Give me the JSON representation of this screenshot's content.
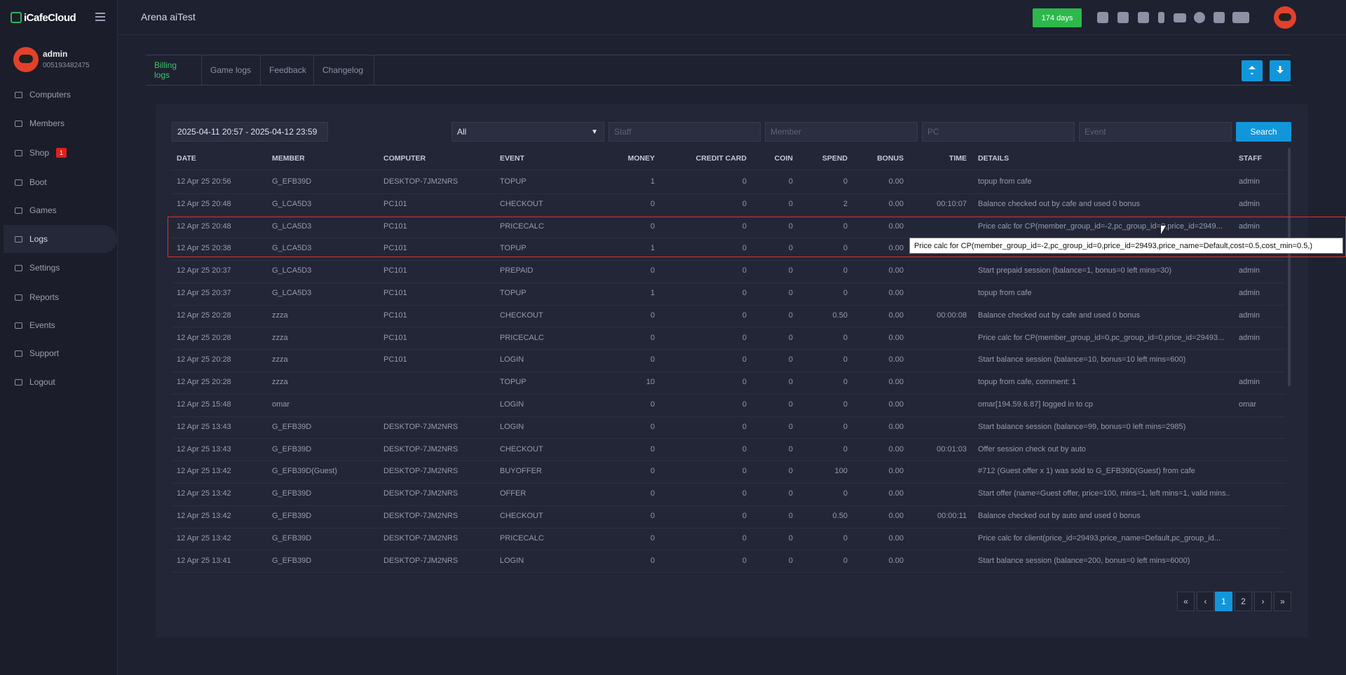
{
  "header": {
    "logo": "iCafeCloud",
    "cafe_name": "Arena aiTest",
    "days_badge": "174 days"
  },
  "user": {
    "name": "admin",
    "id": "005193482475"
  },
  "nav": [
    {
      "label": "Computers"
    },
    {
      "label": "Members"
    },
    {
      "label": "Shop",
      "badge": "1"
    },
    {
      "label": "Boot"
    },
    {
      "label": "Games"
    },
    {
      "label": "Logs",
      "active": true
    },
    {
      "label": "Settings"
    },
    {
      "label": "Reports"
    },
    {
      "label": "Events"
    },
    {
      "label": "Support"
    },
    {
      "label": "Logout"
    }
  ],
  "tabs": [
    {
      "label": "Billing logs",
      "active": true
    },
    {
      "label": "Game logs"
    },
    {
      "label": "Feedback"
    },
    {
      "label": "Changelog"
    }
  ],
  "filters": {
    "date_range": "2025-04-11 20:57 - 2025-04-12 23:59",
    "select": "All",
    "staff_placeholder": "Staff",
    "member_placeholder": "Member",
    "pc_placeholder": "PC",
    "event_placeholder": "Event",
    "search_button": "Search"
  },
  "table": {
    "columns": [
      "DATE",
      "MEMBER",
      "COMPUTER",
      "EVENT",
      "MONEY",
      "CREDIT CARD",
      "COIN",
      "SPEND",
      "BONUS",
      "TIME",
      "DETAILS",
      "STAFF"
    ],
    "rows": [
      [
        "12 Apr 25 20:56",
        "G_EFB39D",
        "DESKTOP-7JM2NRS",
        "TOPUP",
        "1",
        "0",
        "0",
        "0",
        "0.00",
        null,
        "topup from cafe",
        "admin"
      ],
      [
        "12 Apr 25 20:48",
        "G_LCA5D3",
        "PC101",
        "CHECKOUT",
        "0",
        "0",
        "0",
        "2",
        "0.00",
        "00:10:07",
        "Balance checked out by cafe and used 0 bonus",
        "admin"
      ],
      [
        "12 Apr 25 20:48",
        "G_LCA5D3",
        "PC101",
        "PRICECALC",
        "0",
        "0",
        "0",
        "0",
        "0.00",
        null,
        "Price calc for CP(member_group_id=-2,pc_group_id=0,price_id=2949...",
        "admin"
      ],
      [
        "12 Apr 25 20:38",
        "G_LCA5D3",
        "PC101",
        "TOPUP",
        "1",
        "0",
        "0",
        "0",
        "0.00",
        null,
        null,
        null
      ],
      [
        "12 Apr 25 20:37",
        "G_LCA5D3",
        "PC101",
        "PREPAID",
        "0",
        "0",
        "0",
        "0",
        "0.00",
        null,
        "Start prepaid session (balance=1, bonus=0 left mins=30)",
        "admin"
      ],
      [
        "12 Apr 25 20:37",
        "G_LCA5D3",
        "PC101",
        "TOPUP",
        "1",
        "0",
        "0",
        "0",
        "0.00",
        null,
        "topup from cafe",
        "admin"
      ],
      [
        "12 Apr 25 20:28",
        "zzza",
        "PC101",
        "CHECKOUT",
        "0",
        "0",
        "0",
        "0.50",
        "0.00",
        "00:00:08",
        "Balance checked out by cafe and used 0 bonus",
        "admin"
      ],
      [
        "12 Apr 25 20:28",
        "zzza",
        "PC101",
        "PRICECALC",
        "0",
        "0",
        "0",
        "0",
        "0.00",
        null,
        "Price calc for CP(member_group_id=0,pc_group_id=0,price_id=29493...",
        "admin"
      ],
      [
        "12 Apr 25 20:28",
        "zzza",
        "PC101",
        "LOGIN",
        "0",
        "0",
        "0",
        "0",
        "0.00",
        null,
        "Start balance session (balance=10, bonus=10 left mins=600)",
        null
      ],
      [
        "12 Apr 25 20:28",
        "zzza",
        null,
        "TOPUP",
        "10",
        "0",
        "0",
        "0",
        "0.00",
        null,
        "topup from cafe, comment: 1",
        "admin"
      ],
      [
        "12 Apr 25 15:48",
        "omar",
        null,
        "LOGIN",
        "0",
        "0",
        "0",
        "0",
        "0.00",
        null,
        "omar[194.59.6.87] logged in to cp",
        "omar"
      ],
      [
        "12 Apr 25 13:43",
        "G_EFB39D",
        "DESKTOP-7JM2NRS",
        "LOGIN",
        "0",
        "0",
        "0",
        "0",
        "0.00",
        null,
        "Start balance session (balance=99, bonus=0 left mins=2985)",
        null
      ],
      [
        "12 Apr 25 13:43",
        "G_EFB39D",
        "DESKTOP-7JM2NRS",
        "CHECKOUT",
        "0",
        "0",
        "0",
        "0",
        "0.00",
        "00:01:03",
        "Offer session check out by auto",
        null
      ],
      [
        "12 Apr 25 13:42",
        "G_EFB39D(Guest)",
        "DESKTOP-7JM2NRS",
        "BUYOFFER",
        "0",
        "0",
        "0",
        "100",
        "0.00",
        null,
        "#712 (Guest offer x 1) was sold to G_EFB39D(Guest) from cafe",
        null
      ],
      [
        "12 Apr 25 13:42",
        "G_EFB39D",
        "DESKTOP-7JM2NRS",
        "OFFER",
        "0",
        "0",
        "0",
        "0",
        "0.00",
        null,
        "Start offer (name=Guest offer, price=100, mins=1, left mins=1, valid mins...",
        null
      ],
      [
        "12 Apr 25 13:42",
        "G_EFB39D",
        "DESKTOP-7JM2NRS",
        "CHECKOUT",
        "0",
        "0",
        "0",
        "0.50",
        "0.00",
        "00:00:11",
        "Balance checked out by auto and used 0 bonus",
        null
      ],
      [
        "12 Apr 25 13:42",
        "G_EFB39D",
        "DESKTOP-7JM2NRS",
        "PRICECALC",
        "0",
        "0",
        "0",
        "0",
        "0.00",
        null,
        "Price calc for client(price_id=29493,price_name=Default,pc_group_id...",
        null
      ],
      [
        "12 Apr 25 13:41",
        "G_EFB39D",
        "DESKTOP-7JM2NRS",
        "LOGIN",
        "0",
        "0",
        "0",
        "0",
        "0.00",
        null,
        "Start balance session (balance=200, bonus=0 left mins=6000)",
        null
      ]
    ]
  },
  "tooltip": "Price calc for CP(member_group_id=-2,pc_group_id=0,price_id=29493,price_name=Default,cost=0.5,cost_min=0.5,)",
  "pagination": [
    {
      "label": "«"
    },
    {
      "label": "‹"
    },
    {
      "label": "1",
      "active": true
    },
    {
      "label": "2"
    },
    {
      "label": "›"
    },
    {
      "label": "»"
    }
  ]
}
